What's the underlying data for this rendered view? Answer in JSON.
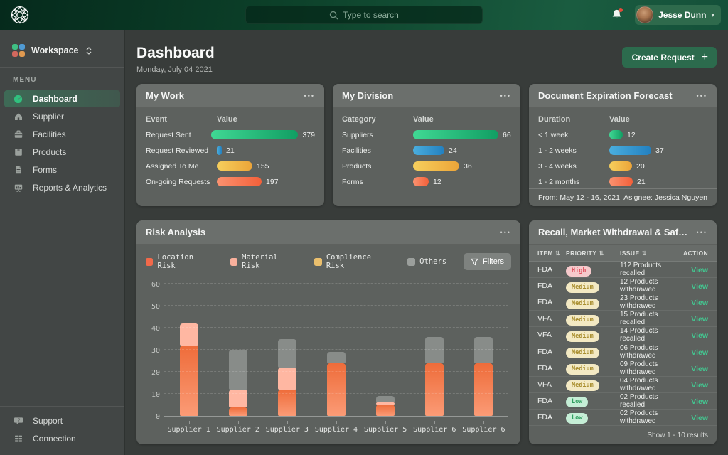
{
  "topbar": {
    "search_placeholder": "Type to search",
    "user_name": "Jesse Dunn"
  },
  "sidebar": {
    "workspace_label": "Workspace",
    "menu_label": "MENU",
    "items": [
      {
        "label": "Dashboard",
        "icon": "dashboard-icon",
        "active": true
      },
      {
        "label": "Supplier",
        "icon": "supplier-icon",
        "active": false
      },
      {
        "label": "Facilities",
        "icon": "facilities-icon",
        "active": false
      },
      {
        "label": "Products",
        "icon": "products-icon",
        "active": false
      },
      {
        "label": "Forms",
        "icon": "forms-icon",
        "active": false
      },
      {
        "label": "Reports & Analytics",
        "icon": "reports-icon",
        "active": false
      }
    ],
    "footer_items": [
      {
        "label": "Support",
        "icon": "support-icon"
      },
      {
        "label": "Connection",
        "icon": "connection-icon"
      }
    ]
  },
  "header": {
    "title": "Dashboard",
    "date": "Monday, July 04 2021",
    "create_button_label": "Create Request"
  },
  "cards": {
    "my_work": {
      "title": "My Work",
      "columns": [
        "Event",
        "Value"
      ],
      "rows": [
        {
          "label": "Request Sent",
          "value": 379,
          "color": "green"
        },
        {
          "label": "Request Reviewed",
          "value": 21,
          "color": "blue"
        },
        {
          "label": "Assigned To Me",
          "value": 155,
          "color": "yellow"
        },
        {
          "label": "On-going Requests",
          "value": 197,
          "color": "orange"
        }
      ]
    },
    "my_division": {
      "title": "My Division",
      "columns": [
        "Category",
        "Value"
      ],
      "rows": [
        {
          "label": "Suppliers",
          "value": 66,
          "color": "green"
        },
        {
          "label": "Facilities",
          "value": 24,
          "color": "blue"
        },
        {
          "label": "Products",
          "value": 36,
          "color": "yellow"
        },
        {
          "label": "Forms",
          "value": 12,
          "color": "orange"
        }
      ]
    },
    "doc_expiration": {
      "title": "Document Expiration Forecast",
      "columns": [
        "Duration",
        "Value"
      ],
      "rows": [
        {
          "label": "< 1 week",
          "value": 12,
          "color": "green"
        },
        {
          "label": "1 - 2 weeks",
          "value": 37,
          "color": "blue"
        },
        {
          "label": "3 - 4 weeks",
          "value": 20,
          "color": "yellow"
        },
        {
          "label": "1 - 2 months",
          "value": 21,
          "color": "orange"
        }
      ],
      "footer_left": "From: May 12 - 16, 2021",
      "footer_right": "Asignee: Jessica Nguyen"
    }
  },
  "risk": {
    "title": "Risk Analysis",
    "filters_label": "Filters"
  },
  "chart_data": {
    "type": "bar",
    "stacked": true,
    "title": "Risk Analysis",
    "categories": [
      "Supplier 1",
      "Supplier 2",
      "Supplier 3",
      "Supplier 4",
      "Supplier 5",
      "Supplier 6",
      "Supplier 6"
    ],
    "series": [
      {
        "name": "Location Risk",
        "color": "#f2694a",
        "values": [
          32,
          4,
          12,
          24,
          5,
          24,
          24
        ]
      },
      {
        "name": "Material Risk",
        "color": "#f9b09c",
        "values": [
          10,
          8,
          10,
          0,
          1,
          0,
          0
        ]
      },
      {
        "name": "Complience Risk",
        "color": "#eabf6d",
        "values": [
          0,
          0,
          0,
          0,
          0,
          0,
          0
        ]
      },
      {
        "name": "Others",
        "color": "#9b9f9c",
        "values": [
          0,
          18,
          13,
          5,
          3,
          12,
          12
        ]
      }
    ],
    "ylim": [
      0,
      60
    ],
    "yticks": [
      0,
      10,
      20,
      30,
      40,
      50,
      60
    ],
    "grid": true,
    "legend_position": "top"
  },
  "recall": {
    "title": "Recall, Market Withdrawal & Safety A...",
    "columns": [
      {
        "label": "ITEM",
        "sortable": true
      },
      {
        "label": "PRIORITY",
        "sortable": true
      },
      {
        "label": "ISSUE",
        "sortable": true
      },
      {
        "label": "ACTION",
        "sortable": false
      }
    ],
    "view_label": "View",
    "rows": [
      {
        "item": "FDA",
        "priority": "High",
        "issue": "112 Products recalled"
      },
      {
        "item": "FDA",
        "priority": "Medium",
        "issue": "12 Products withdrawed"
      },
      {
        "item": "FDA",
        "priority": "Medium",
        "issue": "23 Products withdrawed"
      },
      {
        "item": "VFA",
        "priority": "Medium",
        "issue": "15 Products recalled"
      },
      {
        "item": "VFA",
        "priority": "Medium",
        "issue": "14 Products recalled"
      },
      {
        "item": "FDA",
        "priority": "Medium",
        "issue": "06 Products withdrawed"
      },
      {
        "item": "FDA",
        "priority": "Medium",
        "issue": "09 Products withdrawed"
      },
      {
        "item": "VFA",
        "priority": "Medium",
        "issue": "04 Products withdrawed"
      },
      {
        "item": "FDA",
        "priority": "Low",
        "issue": "02 Products recalled"
      },
      {
        "item": "FDA",
        "priority": "Low",
        "issue": "02 Products withdrawed"
      }
    ],
    "footer": "Show 1 - 10 results"
  },
  "icons": {
    "menu_dots": "•••",
    "caret_down": "▾",
    "sort": "⇅",
    "plus": "+"
  },
  "colors": {
    "topbar_green_dark": "#052a1c",
    "topbar_green_light": "#1a5c40",
    "accent_button_green": "#2c6b4d",
    "priority_high_text": "#e0525f",
    "priority_medium_text": "#a98e2f",
    "priority_low_text": "#2f9e5f",
    "view_link": "#43c690"
  }
}
